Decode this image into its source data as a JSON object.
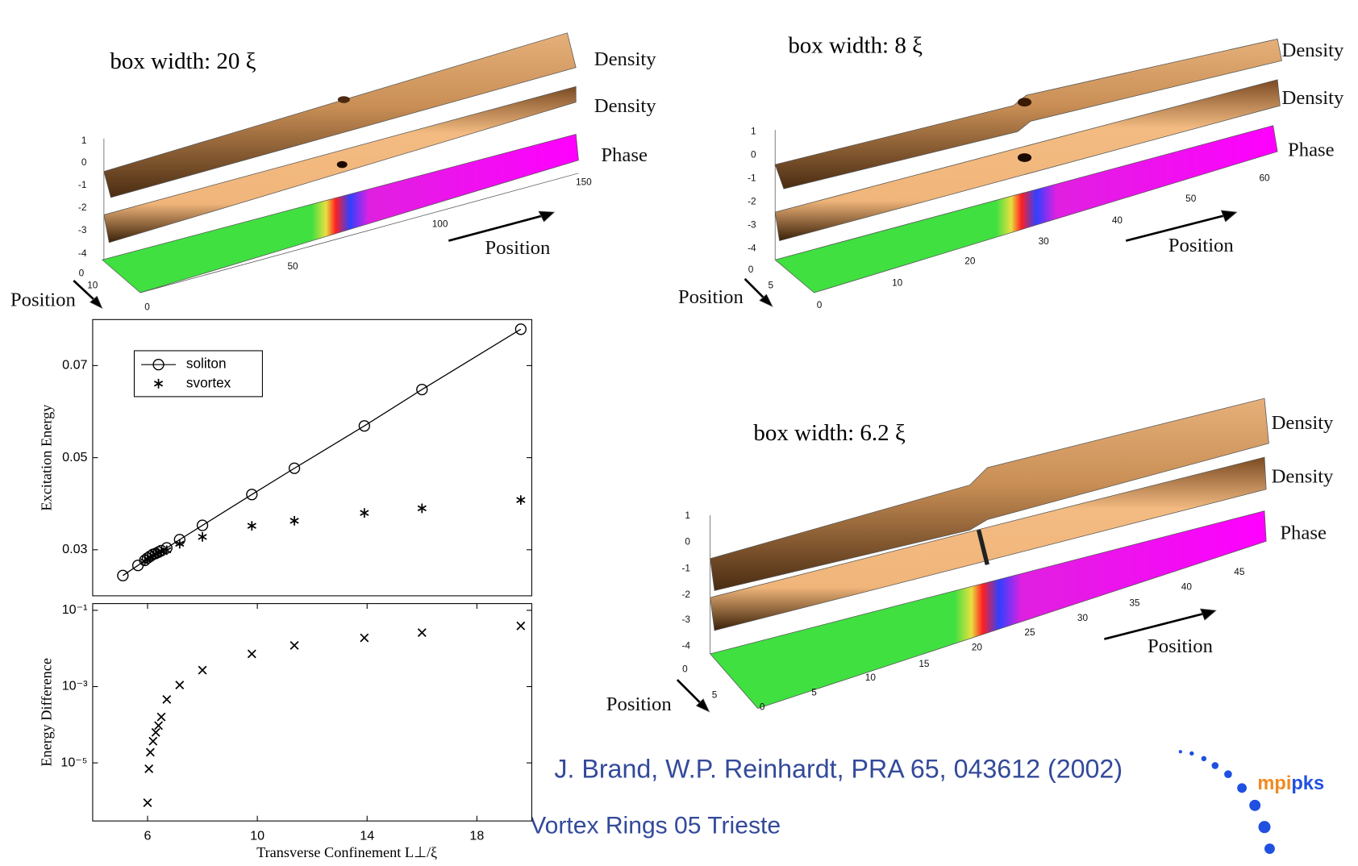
{
  "chart_data": [
    {
      "type": "line",
      "ylabel": "Excitation Energy",
      "x": [
        5.1,
        5.65,
        5.9,
        6.0,
        6.1,
        6.2,
        6.3,
        6.4,
        6.5,
        6.7,
        7.17,
        8.0,
        9.8,
        11.35,
        13.9,
        16.0,
        19.6
      ],
      "series": [
        {
          "name": "soliton",
          "color": "#000000",
          "marker": "o",
          "line": true,
          "values": [
            0.0244,
            0.0266,
            0.0277,
            0.0282,
            0.0286,
            0.029,
            0.0292,
            0.0295,
            0.0298,
            0.0304,
            0.0322,
            0.0353,
            0.042,
            0.0477,
            0.0569,
            0.0648,
            0.0779
          ]
        },
        {
          "name": "svortex",
          "color": "#000000",
          "marker": "*",
          "line": false,
          "values": [
            null,
            null,
            0.0275,
            0.028,
            0.0284,
            0.0287,
            0.029,
            0.0293,
            0.0296,
            0.0299,
            0.0313,
            0.0328,
            0.0352,
            0.0363,
            0.038,
            0.039,
            0.0408
          ]
        }
      ],
      "xlim": [
        4,
        20
      ],
      "ylim": [
        0.02,
        0.08
      ],
      "yticks": [
        0.03,
        0.05,
        0.07
      ],
      "legend": "upper-left"
    },
    {
      "type": "scatter",
      "ylabel": "Energy Difference",
      "xlabel": "Transverse Confinement   L⊥/ξ",
      "x": [
        6.0,
        6.05,
        6.1,
        6.2,
        6.3,
        6.4,
        6.5,
        6.7,
        7.17,
        8.0,
        9.8,
        11.35,
        13.9,
        16.0,
        19.6
      ],
      "values": [
        9e-07,
        7e-06,
        1.9e-05,
        3.7e-05,
        6.3e-05,
        9.5e-05,
        0.00016,
        0.00046,
        0.0011,
        0.0027,
        0.0072,
        0.012,
        0.019,
        0.026,
        0.039
      ],
      "color": "#000000",
      "marker": "x",
      "log_y": true,
      "xlim": [
        4,
        20
      ],
      "xticks": [
        6,
        10,
        14,
        18
      ],
      "ylim": [
        3e-07,
        0.15
      ],
      "yticks": [
        {
          "value": 0.1,
          "label": "10⁻¹"
        },
        {
          "value": 0.001,
          "label": "10⁻³"
        },
        {
          "value": 1e-05,
          "label": "10⁻⁵"
        }
      ]
    }
  ],
  "panels": [
    {
      "title": "box width: 20 ξ",
      "labels": [
        "Density",
        "Density",
        "Phase"
      ],
      "position_labels": [
        "Position",
        "Position"
      ],
      "z_ticks": [
        1,
        0,
        -1,
        -2,
        -3,
        -4
      ],
      "y_ticks": [
        0,
        10
      ],
      "x_ticks": [
        0,
        50,
        100,
        150
      ]
    },
    {
      "title": "box width: 8 ξ",
      "labels": [
        "Density",
        "Density",
        "Phase"
      ],
      "position_labels": [
        "Position",
        "Position"
      ],
      "z_ticks": [
        1,
        0,
        -1,
        -2,
        -3,
        -4
      ],
      "y_ticks": [
        0,
        5
      ],
      "x_ticks": [
        0,
        10,
        20,
        30,
        40,
        50,
        60
      ]
    },
    {
      "title": "box width: 6.2 ξ",
      "labels": [
        "Density",
        "Density",
        "Phase"
      ],
      "position_labels": [
        "Position",
        "Position"
      ],
      "z_ticks": [
        1,
        0,
        -1,
        -2,
        -3,
        -4
      ],
      "y_ticks": [
        0,
        5
      ],
      "x_ticks": [
        0,
        5,
        10,
        15,
        20,
        25,
        30,
        35,
        40,
        45
      ]
    }
  ],
  "footer": {
    "citation": "J. Brand, W.P. Reinhardt, PRA 65, 043612 (2002)",
    "event": "Vortex Rings 05 Trieste",
    "logo": {
      "left": "mpi",
      "right": "pks"
    }
  }
}
